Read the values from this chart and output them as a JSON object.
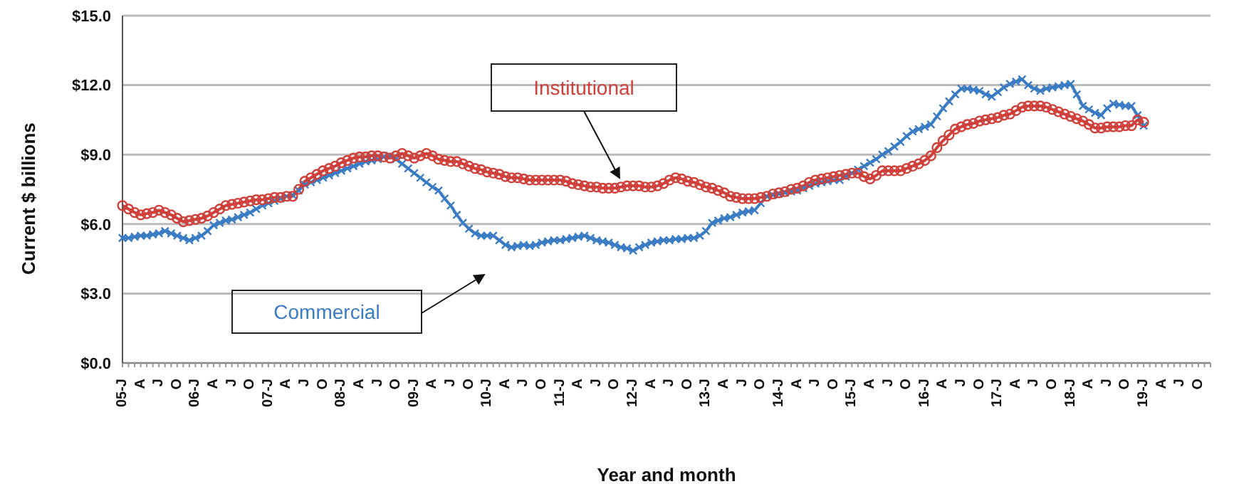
{
  "chart_data": {
    "type": "line",
    "xlabel": "Year and month",
    "ylabel": "Current $ billions",
    "categories": [
      "05-J",
      null,
      null,
      "A",
      null,
      null,
      "J",
      null,
      null,
      "O",
      null,
      null,
      "06-J",
      null,
      null,
      "A",
      null,
      null,
      "J",
      null,
      null,
      "O",
      null,
      null,
      "07-J",
      null,
      null,
      "A",
      null,
      null,
      "J",
      null,
      null,
      "O",
      null,
      null,
      "08-J",
      null,
      null,
      "A",
      null,
      null,
      "J",
      null,
      null,
      "O",
      null,
      null,
      "09-J",
      null,
      null,
      "A",
      null,
      null,
      "J",
      null,
      null,
      "O",
      null,
      null,
      "10-J",
      null,
      null,
      "A",
      null,
      null,
      "J",
      null,
      null,
      "O",
      null,
      null,
      "11-J",
      null,
      null,
      "A",
      null,
      null,
      "J",
      null,
      null,
      "O",
      null,
      null,
      "12-J",
      null,
      null,
      "A",
      null,
      null,
      "J",
      null,
      null,
      "O",
      null,
      null,
      "13-J",
      null,
      null,
      "A",
      null,
      null,
      "J",
      null,
      null,
      "O",
      null,
      null,
      "14-J",
      null,
      null,
      "A",
      null,
      null,
      "J",
      null,
      null,
      "O",
      null,
      null,
      "15-J",
      null,
      null,
      "A",
      null,
      null,
      "J",
      null,
      null,
      "O",
      null,
      null,
      "16-J",
      null,
      null,
      "A",
      null,
      null,
      "J",
      null,
      null,
      "O",
      null,
      null,
      "17-J",
      null,
      null,
      "A",
      null,
      null,
      "J",
      null,
      null,
      "O",
      null,
      null,
      "18-J",
      null,
      null,
      "A",
      null,
      null,
      "J",
      null,
      null,
      "O",
      null,
      null,
      "19-J",
      null,
      null,
      "A",
      null,
      null,
      "J",
      null,
      null,
      "O",
      null,
      null
    ],
    "series": [
      {
        "name": "Commercial",
        "color": "#3a7cc4",
        "marker": "cross",
        "values": [
          5.4,
          5.4,
          5.45,
          5.5,
          5.5,
          5.55,
          5.6,
          5.7,
          5.6,
          5.5,
          5.4,
          5.3,
          5.4,
          5.5,
          5.7,
          5.95,
          6.05,
          6.15,
          6.2,
          6.3,
          6.4,
          6.5,
          6.65,
          6.8,
          6.9,
          7.0,
          7.1,
          7.2,
          7.25,
          7.45,
          7.7,
          7.8,
          7.9,
          8.0,
          8.1,
          8.2,
          8.3,
          8.4,
          8.5,
          8.6,
          8.7,
          8.75,
          8.8,
          8.9,
          8.95,
          8.8,
          8.6,
          8.4,
          8.2,
          8.0,
          7.8,
          7.6,
          7.45,
          7.1,
          6.8,
          6.4,
          6.05,
          5.8,
          5.6,
          5.5,
          5.5,
          5.5,
          5.3,
          5.1,
          5.0,
          5.05,
          5.1,
          5.05,
          5.1,
          5.2,
          5.25,
          5.3,
          5.3,
          5.35,
          5.4,
          5.45,
          5.5,
          5.4,
          5.3,
          5.25,
          5.2,
          5.1,
          5.0,
          4.95,
          4.85,
          5.0,
          5.1,
          5.2,
          5.25,
          5.3,
          5.3,
          5.35,
          5.35,
          5.4,
          5.4,
          5.5,
          5.7,
          6.05,
          6.15,
          6.25,
          6.3,
          6.4,
          6.5,
          6.55,
          6.6,
          6.9,
          7.2,
          7.25,
          7.3,
          7.35,
          7.4,
          7.45,
          7.55,
          7.65,
          7.75,
          7.8,
          7.85,
          7.9,
          7.9,
          8.05,
          8.2,
          8.35,
          8.5,
          8.65,
          8.8,
          9.0,
          9.15,
          9.35,
          9.55,
          9.8,
          10.0,
          10.1,
          10.2,
          10.3,
          10.65,
          11.0,
          11.3,
          11.6,
          11.85,
          11.85,
          11.8,
          11.75,
          11.6,
          11.5,
          11.7,
          11.9,
          12.05,
          12.15,
          12.25,
          12.0,
          11.85,
          11.75,
          11.85,
          11.9,
          11.95,
          12.0,
          12.05,
          11.6,
          11.1,
          10.95,
          10.8,
          10.7,
          11.0,
          11.2,
          11.15,
          11.1,
          11.1,
          10.7,
          10.25,
          null,
          null,
          null,
          null,
          null,
          null,
          null,
          null,
          null,
          null,
          null
        ]
      },
      {
        "name": "Institutional",
        "color": "#d0403a",
        "marker": "circle",
        "values": [
          6.8,
          6.65,
          6.5,
          6.4,
          6.45,
          6.5,
          6.6,
          6.5,
          6.4,
          6.25,
          6.1,
          6.15,
          6.2,
          6.25,
          6.35,
          6.5,
          6.65,
          6.8,
          6.85,
          6.9,
          6.95,
          7.0,
          7.05,
          7.05,
          7.1,
          7.15,
          7.15,
          7.2,
          7.2,
          7.5,
          7.85,
          8.0,
          8.15,
          8.3,
          8.4,
          8.5,
          8.65,
          8.75,
          8.85,
          8.9,
          8.9,
          8.95,
          8.95,
          8.9,
          8.85,
          8.95,
          9.05,
          8.95,
          8.85,
          8.95,
          9.05,
          8.95,
          8.8,
          8.75,
          8.7,
          8.7,
          8.6,
          8.5,
          8.4,
          8.35,
          8.25,
          8.2,
          8.15,
          8.05,
          8.0,
          8.0,
          7.95,
          7.9,
          7.9,
          7.9,
          7.9,
          7.9,
          7.9,
          7.85,
          7.75,
          7.7,
          7.65,
          7.6,
          7.6,
          7.55,
          7.55,
          7.55,
          7.6,
          7.65,
          7.65,
          7.65,
          7.6,
          7.6,
          7.65,
          7.75,
          7.9,
          8.0,
          7.95,
          7.85,
          7.8,
          7.7,
          7.6,
          7.55,
          7.45,
          7.35,
          7.2,
          7.15,
          7.1,
          7.1,
          7.1,
          7.15,
          7.2,
          7.3,
          7.35,
          7.4,
          7.5,
          7.55,
          7.65,
          7.8,
          7.9,
          7.95,
          8.0,
          8.05,
          8.1,
          8.15,
          8.2,
          8.2,
          8.05,
          7.95,
          8.1,
          8.3,
          8.3,
          8.3,
          8.3,
          8.4,
          8.5,
          8.6,
          8.75,
          8.95,
          9.3,
          9.6,
          9.85,
          10.1,
          10.2,
          10.3,
          10.35,
          10.45,
          10.5,
          10.55,
          10.6,
          10.7,
          10.75,
          10.9,
          11.05,
          11.1,
          11.1,
          11.1,
          11.05,
          10.95,
          10.85,
          10.75,
          10.65,
          10.55,
          10.45,
          10.3,
          10.15,
          10.15,
          10.2,
          10.2,
          10.2,
          10.25,
          10.25,
          10.5,
          10.4,
          null,
          null,
          null,
          null,
          null,
          null,
          null,
          null,
          null,
          null,
          null
        ]
      }
    ],
    "ylim": [
      0,
      15
    ],
    "yticks": [
      {
        "value": 0,
        "label": "$0.0"
      },
      {
        "value": 3,
        "label": "$3.0"
      },
      {
        "value": 6,
        "label": "$6.0"
      },
      {
        "value": 9,
        "label": "$9.0"
      },
      {
        "value": 12,
        "label": "$12.0"
      },
      {
        "value": 15,
        "label": "$15.0"
      }
    ],
    "grid": "y",
    "legend": false
  }
}
